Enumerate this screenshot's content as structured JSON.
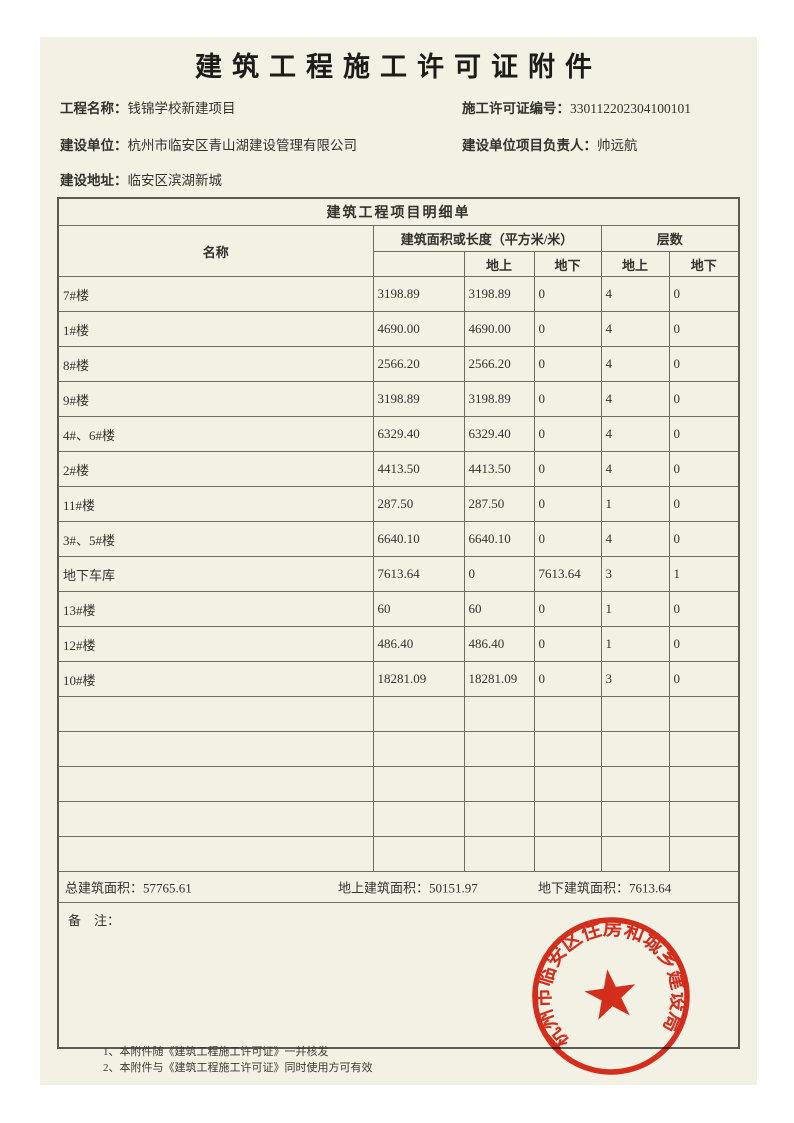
{
  "page": {
    "title": "建筑工程施工许可证附件"
  },
  "info": {
    "project_name": {
      "label": "工程名称：",
      "value": "钱锦学校新建项目"
    },
    "permit_no": {
      "label": "施工许可证编号：",
      "value": "330112202304100101"
    },
    "construction_unit": {
      "label": "建设单位：",
      "value": "杭州市临安区青山湖建设管理有限公司"
    },
    "project_manager": {
      "label": "建设单位项目负责人：",
      "value": "帅远航"
    },
    "address": {
      "label": "建设地址：",
      "value": "临安区滨湖新城"
    }
  },
  "table": {
    "title": "建筑工程项目明细单",
    "header": {
      "name": "名称",
      "area_group": "建筑面积或长度（平方米/米）",
      "floors_group": "层数",
      "above": "地上",
      "below": "地下"
    },
    "rows": [
      {
        "name": "7#楼",
        "total": "3198.89",
        "above_area": "3198.89",
        "below_area": "0",
        "above_floors": "4",
        "below_floors": "0"
      },
      {
        "name": "1#楼",
        "total": "4690.00",
        "above_area": "4690.00",
        "below_area": "0",
        "above_floors": "4",
        "below_floors": "0"
      },
      {
        "name": "8#楼",
        "total": "2566.20",
        "above_area": "2566.20",
        "below_area": "0",
        "above_floors": "4",
        "below_floors": "0"
      },
      {
        "name": "9#楼",
        "total": "3198.89",
        "above_area": "3198.89",
        "below_area": "0",
        "above_floors": "4",
        "below_floors": "0"
      },
      {
        "name": "4#、6#楼",
        "total": "6329.40",
        "above_area": "6329.40",
        "below_area": "0",
        "above_floors": "4",
        "below_floors": "0"
      },
      {
        "name": "2#楼",
        "total": "4413.50",
        "above_area": "4413.50",
        "below_area": "0",
        "above_floors": "4",
        "below_floors": "0"
      },
      {
        "name": "11#楼",
        "total": "287.50",
        "above_area": "287.50",
        "below_area": "0",
        "above_floors": "1",
        "below_floors": "0"
      },
      {
        "name": "3#、5#楼",
        "total": "6640.10",
        "above_area": "6640.10",
        "below_area": "0",
        "above_floors": "4",
        "below_floors": "0"
      },
      {
        "name": "地下车库",
        "total": "7613.64",
        "above_area": "0",
        "below_area": "7613.64",
        "above_floors": "3",
        "below_floors": "1"
      },
      {
        "name": "13#楼",
        "total": "60",
        "above_area": "60",
        "below_area": "0",
        "above_floors": "1",
        "below_floors": "0"
      },
      {
        "name": "12#楼",
        "total": "486.40",
        "above_area": "486.40",
        "below_area": "0",
        "above_floors": "1",
        "below_floors": "0"
      },
      {
        "name": "10#楼",
        "total": "18281.09",
        "above_area": "18281.09",
        "below_area": "0",
        "above_floors": "3",
        "below_floors": "0"
      }
    ],
    "empty_row_count": 5,
    "totals": {
      "total": "总建筑面积：57765.61",
      "above": "地上建筑面积：50151.97",
      "below": "地下建筑面积：7613.64"
    },
    "remark_label": "备　注："
  },
  "footnotes": [
    "1、本附件随《建筑工程施工许可证》一并核发",
    "2、本附件与《建筑工程施工许可证》同时使用方可有效"
  ],
  "seal": {
    "text": "杭州市临安区住房和城乡建设局",
    "color": "#df2413"
  },
  "colors": {
    "paper": "#f3f0e4",
    "table_line": "#6e6d62",
    "text": "#33322c"
  }
}
